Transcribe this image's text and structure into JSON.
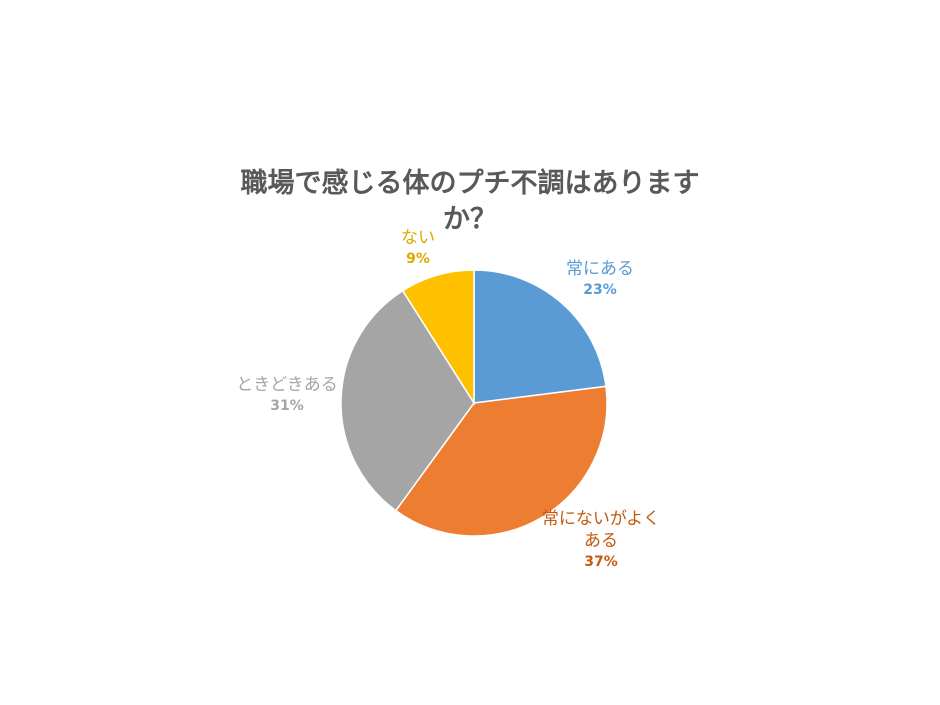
{
  "chart_data": {
    "type": "pie",
    "title": "職場で感じる体のプチ不調はありますか？",
    "categories": [
      "常にある",
      "常にないがよくある",
      "ときどきある",
      "ない"
    ],
    "values": [
      23,
      37,
      31,
      9
    ],
    "labels": [
      "23%",
      "37%",
      "31%",
      "9%"
    ],
    "colors": [
      "#5B9BD5",
      "#ED7D31",
      "#A5A5A5",
      "#FFC000"
    ],
    "label_colors": [
      "#5B9BD5",
      "#C55A11",
      "#A5A5A5",
      "#DDA900"
    ],
    "legend": "none"
  }
}
